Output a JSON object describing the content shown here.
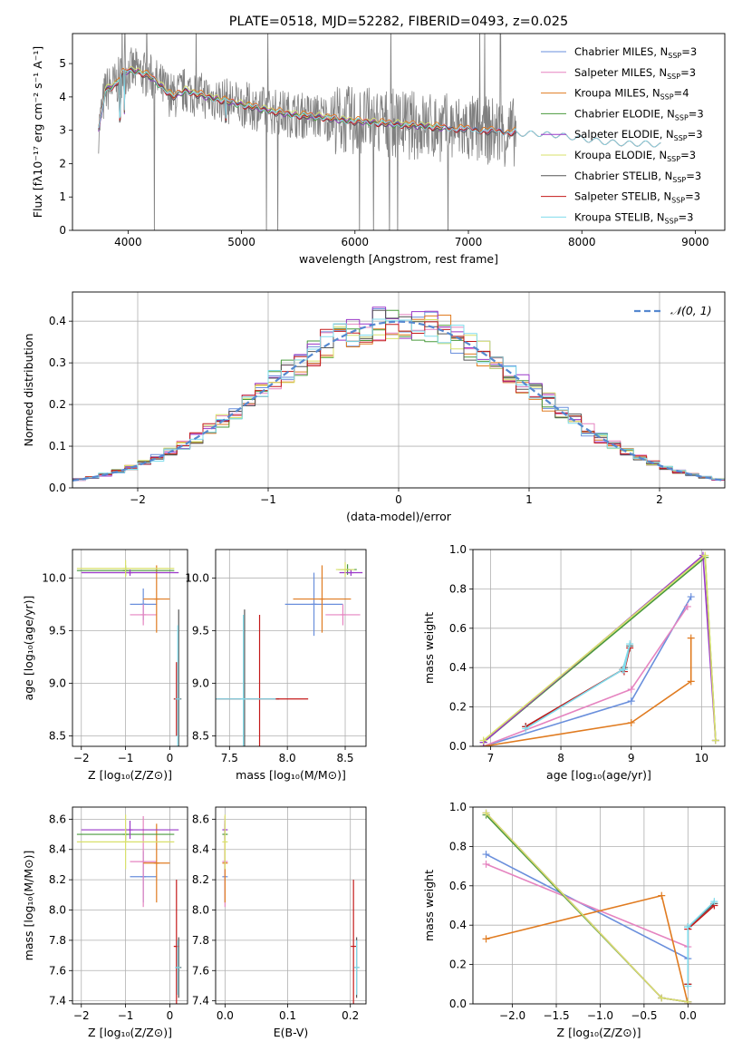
{
  "colors": {
    "Chabrier MILES": "#6a8fdc",
    "Salpeter MILES": "#e584c0",
    "Kroupa MILES": "#e07b20",
    "Chabrier ELODIE": "#4a9a3c",
    "Salpeter ELODIE": "#9a38c8",
    "Kroupa ELODIE": "#d8e06a",
    "Chabrier STELIB": "#555555",
    "Salpeter STELIB": "#c41a1a",
    "Kroupa STELIB": "#80dcec",
    "data": "#808080",
    "normal": "#5588d0",
    "grid": "#b0b0b0"
  },
  "chart_data": [
    {
      "id": "spectrum",
      "type": "line",
      "title": "PLATE=0518, MJD=52282, FIBERID=0493, z=0.025",
      "xlabel": "wavelength [Angstrom, rest frame]",
      "ylabel": "Flux [fλ10⁻¹⁷ erg cm⁻² s⁻¹ A⁻¹]",
      "xlim": [
        3510,
        9260
      ],
      "ylim": [
        0,
        5.9
      ],
      "xticks": [
        4000,
        5000,
        6000,
        7000,
        8000,
        9000
      ],
      "yticks": [
        0,
        1,
        2,
        3,
        4,
        5
      ],
      "grid": false,
      "legend_position": "top-right",
      "legend": [
        {
          "name": "Chabrier MILES",
          "nssp": "3"
        },
        {
          "name": "Salpeter MILES",
          "nssp": "3"
        },
        {
          "name": "Kroupa MILES",
          "nssp": "4"
        },
        {
          "name": "Chabrier ELODIE",
          "nssp": "3"
        },
        {
          "name": "Salpeter ELODIE",
          "nssp": "3"
        },
        {
          "name": "Kroupa ELODIE",
          "nssp": "3"
        },
        {
          "name": "Chabrier STELIB",
          "nssp": "3"
        },
        {
          "name": "Salpeter STELIB",
          "nssp": "3"
        },
        {
          "name": "Kroupa STELIB",
          "nssp": "3"
        }
      ],
      "data_envelope": {
        "x": [
          3740,
          3800,
          3900,
          3950,
          4000,
          4100,
          4200,
          4300,
          4400,
          4500,
          4700,
          4900,
          5100,
          5300,
          5500,
          5700,
          5900,
          6100,
          6300,
          6500,
          6700,
          6900,
          7100,
          7300,
          7420
        ],
        "y": [
          3.0,
          4.2,
          4.4,
          4.7,
          4.8,
          4.75,
          4.6,
          4.3,
          4.0,
          4.2,
          4.0,
          3.85,
          3.7,
          3.55,
          3.45,
          3.4,
          3.3,
          3.25,
          3.2,
          3.15,
          3.1,
          3.05,
          3.0,
          2.95,
          2.95
        ],
        "noise_amplitude": 0.7
      },
      "models": [
        {
          "name": "Chabrier MILES",
          "range": [
            3740,
            7420
          ],
          "offset": 0.0
        },
        {
          "name": "Salpeter MILES",
          "range": [
            3740,
            7420
          ],
          "offset": 0.02
        },
        {
          "name": "Kroupa MILES",
          "range": [
            3740,
            7420
          ],
          "offset": 0.05
        },
        {
          "name": "Chabrier ELODIE",
          "range": [
            3740,
            6800
          ],
          "offset": -0.02
        },
        {
          "name": "Salpeter ELODIE",
          "range": [
            3740,
            6800
          ],
          "offset": -0.01
        },
        {
          "name": "Kroupa ELODIE",
          "range": [
            3740,
            6800
          ],
          "offset": 0.04
        },
        {
          "name": "Chabrier STELIB",
          "range": [
            3740,
            8700
          ],
          "offset": -0.03
        },
        {
          "name": "Salpeter STELIB",
          "range": [
            3740,
            8700
          ],
          "offset": -0.02
        },
        {
          "name": "Kroupa STELIB",
          "range": [
            3740,
            8700
          ],
          "offset": 0.0
        }
      ],
      "stelib_tail": {
        "x": [
          7420,
          7600,
          7800,
          8000,
          8200,
          8400,
          8600,
          8700
        ],
        "y": [
          2.9,
          2.9,
          2.85,
          2.75,
          2.65,
          2.6,
          2.6,
          2.55
        ]
      }
    },
    {
      "id": "residuals",
      "type": "line",
      "xlabel": "(data-model)/error",
      "ylabel": "Normed distribution",
      "xlim": [
        -2.5,
        2.5
      ],
      "ylim": [
        0,
        0.47
      ],
      "xticks": [
        -2,
        -1,
        0,
        1,
        2
      ],
      "yticks": [
        0.0,
        0.1,
        0.2,
        0.3,
        0.4
      ],
      "grid": true,
      "legend_position": "top-right",
      "legend": [
        {
          "name": "𝒩(0, 1)"
        }
      ],
      "bin_width": 0.1
    },
    {
      "id": "age-vs-z",
      "type": "scatter",
      "xlabel": "Z [log₁₀(Z/Z⊙)]",
      "ylabel": "age  [log₁₀(age/yr)]",
      "xlim": [
        -2.2,
        0.4
      ],
      "ylim": [
        8.4,
        10.27
      ],
      "xticks": [
        -2,
        -1,
        0
      ],
      "yticks": [
        8.5,
        9.0,
        9.5,
        10.0
      ],
      "grid": true,
      "points": [
        {
          "series": "Chabrier MILES",
          "x": -0.6,
          "y": 9.75,
          "xerr": 0.3,
          "yerr": 0.15
        },
        {
          "series": "Salpeter MILES",
          "x": -0.6,
          "y": 9.65,
          "xerr": 0.3,
          "yerr": 0.1
        },
        {
          "series": "Kroupa MILES",
          "x": -0.3,
          "y": 9.8,
          "xerr": 0.3,
          "yerr": 0.32
        },
        {
          "series": "Chabrier ELODIE",
          "x": -1.0,
          "y": 10.07,
          "xerr": 1.1,
          "yerr": 0.05
        },
        {
          "series": "Salpeter ELODIE",
          "x": -0.9,
          "y": 10.05,
          "xerr": 1.1,
          "yerr": 0.03
        },
        {
          "series": "Kroupa ELODIE",
          "x": -1.0,
          "y": 10.09,
          "xerr": 1.1,
          "yerr": 0.08
        },
        {
          "series": "Chabrier STELIB",
          "x": 0.2,
          "y": 8.85,
          "xerr": 0.0,
          "yerr": 0.85
        },
        {
          "series": "Salpeter STELIB",
          "x": 0.15,
          "y": 8.85,
          "xerr": 0.05,
          "yerr": 0.35
        },
        {
          "series": "Kroupa STELIB",
          "x": 0.18,
          "y": 8.85,
          "xerr": 0.0,
          "yerr": 0.7
        }
      ]
    },
    {
      "id": "age-vs-mass",
      "type": "scatter",
      "xlabel": "mass [log₁₀(M/M⊙)]",
      "ylabel": "",
      "xlim": [
        7.38,
        8.68
      ],
      "ylim": [
        8.4,
        10.27
      ],
      "xticks": [
        7.5,
        8.0,
        8.5
      ],
      "yticks": [
        8.5,
        9.0,
        9.5,
        10.0
      ],
      "grid": true,
      "points": [
        {
          "series": "Chabrier MILES",
          "x": 8.23,
          "y": 9.75,
          "xerr": 0.25,
          "yerr": 0.3
        },
        {
          "series": "Salpeter MILES",
          "x": 8.48,
          "y": 9.65,
          "xerr": 0.15,
          "yerr": 0.1
        },
        {
          "series": "Kroupa MILES",
          "x": 8.3,
          "y": 9.8,
          "xerr": 0.25,
          "yerr": 0.32
        },
        {
          "series": "Chabrier ELODIE",
          "x": 8.52,
          "y": 10.08,
          "xerr": 0.08,
          "yerr": 0.05
        },
        {
          "series": "Salpeter ELODIE",
          "x": 8.55,
          "y": 10.05,
          "xerr": 0.1,
          "yerr": 0.03
        },
        {
          "series": "Kroupa ELODIE",
          "x": 8.5,
          "y": 10.08,
          "xerr": 0.08,
          "yerr": 0.07
        },
        {
          "series": "Chabrier STELIB",
          "x": 7.63,
          "y": 8.85,
          "xerr": 0.3,
          "yerr": 0.85
        },
        {
          "series": "Salpeter STELIB",
          "x": 7.76,
          "y": 8.85,
          "xerr": 0.42,
          "yerr": 0.8
        },
        {
          "series": "Kroupa STELIB",
          "x": 7.62,
          "y": 8.85,
          "xerr": 0.28,
          "yerr": 0.8
        }
      ]
    },
    {
      "id": "massweight-vs-age",
      "type": "line",
      "xlabel": "age  [log₁₀(age/yr)]",
      "ylabel": "mass weight",
      "xlim": [
        6.75,
        10.33
      ],
      "ylim": [
        0,
        1.0
      ],
      "xticks": [
        7,
        8,
        9,
        10
      ],
      "yticks": [
        0.0,
        0.2,
        0.4,
        0.6,
        0.8,
        1.0
      ],
      "grid": true,
      "series": [
        {
          "name": "Chabrier MILES",
          "x": [
            6.9,
            9.0,
            9.85
          ],
          "y": [
            0.0,
            0.23,
            0.76
          ]
        },
        {
          "name": "Salpeter MILES",
          "x": [
            6.9,
            9.0,
            9.8
          ],
          "y": [
            0.0,
            0.29,
            0.71
          ]
        },
        {
          "name": "Kroupa MILES",
          "x": [
            6.9,
            9.0,
            9.85,
            9.85
          ],
          "y": [
            0.0,
            0.12,
            0.33,
            0.55
          ]
        },
        {
          "name": "Chabrier ELODIE",
          "x": [
            6.9,
            10.05,
            10.2
          ],
          "y": [
            0.02,
            0.96,
            0.03
          ]
        },
        {
          "name": "Salpeter ELODIE",
          "x": [
            6.9,
            10.02,
            10.2
          ],
          "y": [
            0.02,
            0.97,
            0.03
          ]
        },
        {
          "name": "Kroupa ELODIE",
          "x": [
            6.9,
            10.05,
            10.2
          ],
          "y": [
            0.03,
            0.97,
            0.03
          ]
        },
        {
          "name": "Chabrier STELIB",
          "x": [
            7.5,
            8.88,
            8.98,
            8.9
          ],
          "y": [
            0.1,
            0.39,
            0.51,
            0.4
          ]
        },
        {
          "name": "Salpeter STELIB",
          "x": [
            7.5,
            8.88,
            8.98,
            8.9
          ],
          "y": [
            0.1,
            0.39,
            0.5,
            0.38
          ]
        },
        {
          "name": "Kroupa STELIB",
          "x": [
            7.5,
            8.88,
            8.98,
            8.9
          ],
          "y": [
            0.09,
            0.39,
            0.52,
            0.39
          ]
        }
      ]
    },
    {
      "id": "mass-vs-z",
      "type": "scatter",
      "xlabel": "Z [log₁₀(Z/Z⊙)]",
      "ylabel": "mass [log₁₀(M/M⊙)]",
      "xlim": [
        -2.2,
        0.4
      ],
      "ylim": [
        7.38,
        8.68
      ],
      "xticks": [
        -2,
        -1,
        0
      ],
      "yticks": [
        7.4,
        7.6,
        7.8,
        8.0,
        8.2,
        8.4,
        8.6
      ],
      "grid": true,
      "points": [
        {
          "series": "Chabrier MILES",
          "x": -0.6,
          "y": 8.22,
          "xerr": 0.3,
          "yerr": 0.17
        },
        {
          "series": "Salpeter MILES",
          "x": -0.6,
          "y": 8.32,
          "xerr": 0.3,
          "yerr": 0.3
        },
        {
          "series": "Kroupa MILES",
          "x": -0.3,
          "y": 8.31,
          "xerr": 0.3,
          "yerr": 0.26
        },
        {
          "series": "Chabrier ELODIE",
          "x": -1.0,
          "y": 8.5,
          "xerr": 1.1,
          "yerr": 0.04
        },
        {
          "series": "Salpeter ELODIE",
          "x": -0.9,
          "y": 8.53,
          "xerr": 1.1,
          "yerr": 0.06
        },
        {
          "series": "Kroupa ELODIE",
          "x": -1.0,
          "y": 8.45,
          "xerr": 1.1,
          "yerr": 0.18
        },
        {
          "series": "Chabrier STELIB",
          "x": 0.2,
          "y": 7.62,
          "xerr": 0.05,
          "yerr": 0.2
        },
        {
          "series": "Salpeter STELIB",
          "x": 0.15,
          "y": 7.76,
          "xerr": 0.05,
          "yerr": 0.44
        },
        {
          "series": "Kroupa STELIB",
          "x": 0.18,
          "y": 7.62,
          "xerr": 0.0,
          "yerr": 0.18
        }
      ]
    },
    {
      "id": "mass-vs-ebv",
      "type": "scatter",
      "xlabel": "E(B-V)",
      "ylabel": "",
      "xlim": [
        -0.015,
        0.225
      ],
      "ylim": [
        7.38,
        8.68
      ],
      "xticks": [
        0.0,
        0.1,
        0.2
      ],
      "yticks": [
        7.4,
        7.6,
        7.8,
        8.0,
        8.2,
        8.4,
        8.6
      ],
      "grid": true,
      "points": [
        {
          "series": "Chabrier MILES",
          "x": 0.0,
          "y": 8.22,
          "yerr": 0.17
        },
        {
          "series": "Salpeter MILES",
          "x": 0.0,
          "y": 8.32,
          "yerr": 0.3
        },
        {
          "series": "Kroupa MILES",
          "x": 0.0,
          "y": 8.31,
          "yerr": 0.26
        },
        {
          "series": "Chabrier ELODIE",
          "x": 0.0,
          "y": 8.5,
          "yerr": 0.04
        },
        {
          "series": "Salpeter ELODIE",
          "x": 0.0,
          "y": 8.53,
          "yerr": 0.06
        },
        {
          "series": "Kroupa ELODIE",
          "x": 0.0,
          "y": 8.45,
          "yerr": 0.18
        },
        {
          "series": "Chabrier STELIB",
          "x": 0.21,
          "y": 7.62,
          "yerr": 0.2
        },
        {
          "series": "Salpeter STELIB",
          "x": 0.205,
          "y": 7.76,
          "yerr": 0.44
        },
        {
          "series": "Kroupa STELIB",
          "x": 0.21,
          "y": 7.62,
          "yerr": 0.18
        }
      ]
    },
    {
      "id": "massweight-vs-z",
      "type": "line",
      "xlabel": "Z [log₁₀(Z/Z⊙)]",
      "ylabel": "mass weight",
      "xlim": [
        -2.45,
        0.42
      ],
      "ylim": [
        0,
        1.0
      ],
      "xticks": [
        -2.0,
        -1.5,
        -1.0,
        -0.5,
        0.0
      ],
      "yticks": [
        0.0,
        0.2,
        0.4,
        0.6,
        0.8,
        1.0
      ],
      "grid": true,
      "series": [
        {
          "name": "Chabrier MILES",
          "x": [
            -2.3,
            0.0
          ],
          "y": [
            0.76,
            0.23
          ]
        },
        {
          "name": "Salpeter MILES",
          "x": [
            -2.3,
            0.0
          ],
          "y": [
            0.71,
            0.29
          ]
        },
        {
          "name": "Kroupa MILES",
          "x": [
            -2.3,
            -0.3,
            0.0
          ],
          "y": [
            0.33,
            0.55,
            0.0
          ]
        },
        {
          "name": "Chabrier ELODIE",
          "x": [
            -2.3,
            -0.3,
            0.0
          ],
          "y": [
            0.96,
            0.03,
            0.01
          ]
        },
        {
          "name": "Salpeter ELODIE",
          "x": [
            -2.3,
            -0.3,
            0.0
          ],
          "y": [
            0.97,
            0.03,
            0.01
          ]
        },
        {
          "name": "Kroupa ELODIE",
          "x": [
            -2.3,
            -0.3,
            0.0
          ],
          "y": [
            0.97,
            0.03,
            0.01
          ]
        },
        {
          "name": "Chabrier STELIB",
          "x": [
            0.0,
            0.0,
            0.3,
            0.0
          ],
          "y": [
            0.1,
            0.39,
            0.51,
            0.39
          ]
        },
        {
          "name": "Salpeter STELIB",
          "x": [
            0.0,
            0.0,
            0.3,
            0.0
          ],
          "y": [
            0.1,
            0.38,
            0.5,
            0.38
          ]
        },
        {
          "name": "Kroupa STELIB",
          "x": [
            0.0,
            0.0,
            0.3,
            0.0
          ],
          "y": [
            0.09,
            0.39,
            0.52,
            0.39
          ]
        }
      ]
    }
  ]
}
